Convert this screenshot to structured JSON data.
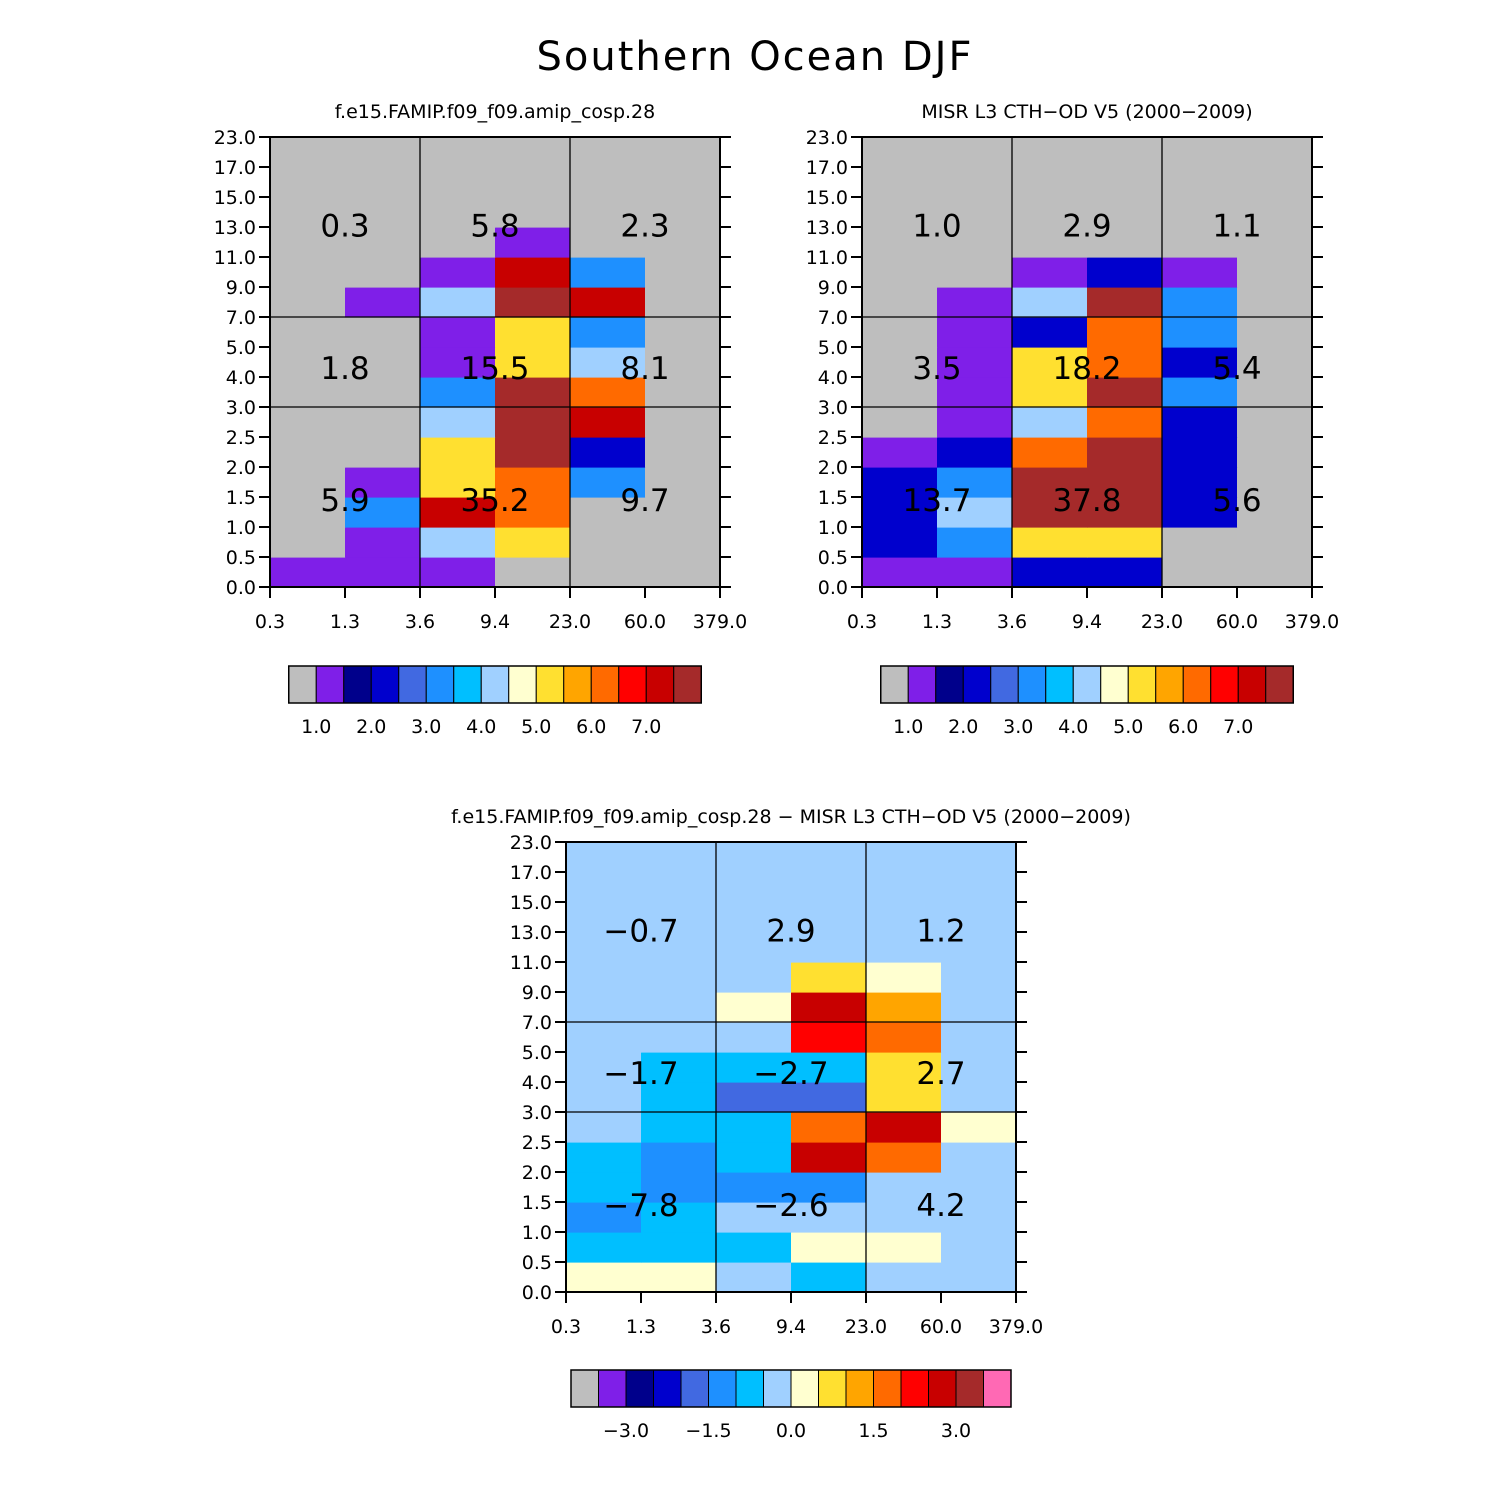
{
  "figure_title": "Southern Ocean DJF",
  "chart_data": [
    {
      "type": "heatmap",
      "title": "f.e15.FAMIP.f09_f09.amip_cosp.28",
      "x_ticks": [
        "0.3",
        "1.3",
        "3.6",
        "9.4",
        "23.0",
        "60.0",
        "379.0"
      ],
      "y_ticks": [
        "0.0",
        "0.5",
        "1.0",
        "1.5",
        "2.0",
        "2.5",
        "3.0",
        "4.0",
        "5.0",
        "7.0",
        "9.0",
        "11.0",
        "13.0",
        "15.0",
        "17.0",
        "23.0"
      ],
      "bin_levels": [
        1.0,
        1.5,
        2.0,
        2.5,
        3.0,
        3.5,
        4.0,
        4.5,
        5.0,
        5.5,
        6.0,
        6.5,
        7.0,
        7.5
      ],
      "colorbar_labels": [
        "1.0",
        "2.0",
        "3.0",
        "4.0",
        "5.0",
        "6.0",
        "7.0"
      ],
      "grid_rows_low_to_high": [
        [
          1,
          1,
          1,
          0,
          0,
          0
        ],
        [
          0,
          1,
          4,
          5,
          0,
          0
        ],
        [
          0,
          3,
          7,
          6,
          0,
          0
        ],
        [
          0,
          1,
          5,
          6,
          3,
          0
        ],
        [
          0,
          0,
          5,
          11,
          2,
          0
        ],
        [
          0,
          0,
          4,
          10,
          7,
          0
        ],
        [
          0,
          0,
          3,
          9,
          6,
          0
        ],
        [
          0,
          0,
          1,
          5,
          4,
          0
        ],
        [
          0,
          0,
          1,
          5,
          3,
          0
        ],
        [
          0,
          1,
          4,
          12,
          7,
          0
        ],
        [
          0,
          0,
          1,
          7,
          3,
          0
        ],
        [
          0,
          0,
          0,
          1,
          0,
          0
        ],
        [
          0,
          0,
          0,
          0,
          0,
          0
        ],
        [
          0,
          0,
          0,
          0,
          0,
          0
        ],
        [
          0,
          0,
          0,
          0,
          0,
          0
        ]
      ],
      "region_totals": [
        [
          "5.9",
          "35.2",
          "9.7"
        ],
        [
          "1.8",
          "15.5",
          "8.1"
        ],
        [
          "0.3",
          "5.8",
          "2.3"
        ]
      ]
    },
    {
      "type": "heatmap",
      "title": "MISR L3 CTH-OD V5 (2000-2009)",
      "x_ticks": [
        "0.3",
        "1.3",
        "3.6",
        "9.4",
        "23.0",
        "60.0",
        "379.0"
      ],
      "y_ticks": [
        "0.0",
        "0.5",
        "1.0",
        "1.5",
        "2.0",
        "2.5",
        "3.0",
        "4.0",
        "5.0",
        "7.0",
        "9.0",
        "11.0",
        "13.0",
        "15.0",
        "17.0",
        "23.0"
      ],
      "bin_levels": [
        1.0,
        1.5,
        2.0,
        2.5,
        3.0,
        3.5,
        4.0,
        4.5,
        5.0,
        5.5,
        6.0,
        6.5,
        7.0,
        7.5
      ],
      "colorbar_labels": [
        "1.0",
        "2.0",
        "3.0",
        "4.0",
        "5.0",
        "6.0",
        "7.0"
      ],
      "grid_rows_low_to_high": [
        [
          1,
          1,
          2,
          2,
          0,
          0
        ],
        [
          2,
          3,
          5,
          5,
          0,
          0
        ],
        [
          2,
          4,
          8,
          8,
          2,
          0
        ],
        [
          2,
          3,
          8,
          9,
          2,
          0
        ],
        [
          1,
          2,
          6,
          8,
          2,
          0
        ],
        [
          0,
          1,
          4,
          6,
          2,
          0
        ],
        [
          0,
          1,
          5,
          8,
          3,
          0
        ],
        [
          0,
          1,
          5,
          6,
          2,
          0
        ],
        [
          0,
          1,
          2,
          6,
          3,
          0
        ],
        [
          0,
          1,
          4,
          8,
          3,
          0
        ],
        [
          0,
          0,
          1,
          2,
          1,
          0
        ],
        [
          0,
          0,
          0,
          0,
          0,
          0
        ],
        [
          0,
          0,
          0,
          0,
          0,
          0
        ],
        [
          0,
          0,
          0,
          0,
          0,
          0
        ],
        [
          0,
          0,
          0,
          0,
          0,
          0
        ]
      ],
      "region_totals": [
        [
          "13.7",
          "37.8",
          "5.6"
        ],
        [
          "3.5",
          "18.2",
          "5.4"
        ],
        [
          "1.0",
          "2.9",
          "1.1"
        ]
      ]
    },
    {
      "type": "heatmap",
      "title": "f.e15.FAMIP.f09_f09.amip_cosp.28 - MISR L3 CTH-OD V5 (2000-2009)",
      "x_ticks": [
        "0.3",
        "1.3",
        "3.6",
        "9.4",
        "23.0",
        "60.0",
        "379.0"
      ],
      "y_ticks": [
        "0.0",
        "0.5",
        "1.0",
        "1.5",
        "2.0",
        "2.5",
        "3.0",
        "4.0",
        "5.0",
        "7.0",
        "9.0",
        "11.0",
        "13.0",
        "15.0",
        "17.0",
        "23.0"
      ],
      "bin_levels": [
        -3.5,
        -3.0,
        -2.5,
        -2.0,
        -1.5,
        -1.0,
        -0.5,
        0.0,
        0.5,
        1.0,
        1.5,
        2.0,
        2.5,
        3.0,
        3.5
      ],
      "colorbar_labels": [
        "-3.0",
        "-1.5",
        "0.0",
        "1.5",
        "3.0"
      ],
      "grid_rows_low_to_high": [
        [
          0.2,
          0.2,
          -0.2,
          -0.8,
          -0.2,
          -0.2
        ],
        [
          -0.8,
          -0.8,
          -0.8,
          0.2,
          0.2,
          -0.2
        ],
        [
          -1.2,
          -0.8,
          -0.2,
          -0.2,
          -0.2,
          -0.2
        ],
        [
          -0.8,
          -1.2,
          -1.2,
          -1.2,
          -0.2,
          -0.2
        ],
        [
          -0.8,
          -1.2,
          -0.8,
          2.8,
          1.8,
          -0.2
        ],
        [
          -0.2,
          -0.8,
          -0.8,
          1.8,
          2.8,
          0.2
        ],
        [
          -0.2,
          -0.8,
          -1.8,
          -1.8,
          0.8,
          -0.2
        ],
        [
          -0.2,
          -0.8,
          -0.8,
          -0.8,
          0.8,
          -0.2
        ],
        [
          -0.2,
          -0.2,
          -0.2,
          2.2,
          1.8,
          -0.2
        ],
        [
          -0.2,
          -0.2,
          0.2,
          2.8,
          1.2,
          -0.2
        ],
        [
          -0.2,
          -0.2,
          -0.2,
          0.8,
          0.2,
          -0.2
        ],
        [
          -0.2,
          -0.2,
          -0.2,
          -0.2,
          -0.2,
          -0.2
        ],
        [
          -0.2,
          -0.2,
          -0.2,
          -0.2,
          -0.2,
          -0.2
        ],
        [
          -0.2,
          -0.2,
          -0.2,
          -0.2,
          -0.2,
          -0.2
        ],
        [
          -0.2,
          -0.2,
          -0.2,
          -0.2,
          -0.2,
          -0.2
        ]
      ],
      "region_totals": [
        [
          "-7.8",
          "-2.6",
          "4.2"
        ],
        [
          "-1.7",
          "-2.7",
          "2.7"
        ],
        [
          "-0.7",
          "2.9",
          "1.2"
        ]
      ]
    }
  ],
  "palette": [
    "#bebebe",
    "#7f1fe8",
    "#00008b",
    "#0000cd",
    "#4169e1",
    "#1e90ff",
    "#00bfff",
    "#a0d0ff",
    "#ffffd0",
    "#ffe030",
    "#ffa500",
    "#ff6a00",
    "#ff0000",
    "#c80000",
    "#a52a2a",
    "#ff69b4"
  ]
}
